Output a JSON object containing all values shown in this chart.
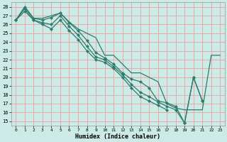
{
  "xlabel": "Humidex (Indice chaleur)",
  "bg_color": "#cceae6",
  "grid_color": "#e8a8a8",
  "line_color": "#2d7d6e",
  "xlim": [
    -0.5,
    23.5
  ],
  "ylim": [
    14.5,
    28.5
  ],
  "xticks": [
    0,
    1,
    2,
    3,
    4,
    5,
    6,
    7,
    8,
    9,
    10,
    11,
    12,
    13,
    14,
    15,
    16,
    17,
    18,
    19,
    20,
    21,
    22,
    23
  ],
  "yticks": [
    15,
    16,
    17,
    18,
    19,
    20,
    21,
    22,
    23,
    24,
    25,
    26,
    27,
    28
  ],
  "line_top": {
    "x": [
      0,
      1,
      2,
      3,
      4,
      5,
      6,
      7,
      8,
      9,
      10,
      11,
      12,
      13,
      14,
      15,
      16,
      17,
      18,
      19,
      20,
      21,
      22,
      23
    ],
    "y": [
      26.5,
      28.0,
      26.7,
      26.7,
      27.0,
      27.3,
      26.3,
      25.5,
      25.0,
      24.5,
      22.5,
      22.5,
      21.5,
      20.5,
      20.5,
      20.0,
      19.5,
      17.0,
      16.5,
      16.3,
      16.3,
      16.3,
      22.5,
      22.5
    ]
  },
  "line_a": {
    "x": [
      0,
      1,
      2,
      3,
      4,
      5,
      6,
      7,
      8,
      9,
      10,
      11,
      12,
      13,
      14,
      15,
      16,
      17,
      18,
      19,
      20,
      21
    ],
    "y": [
      26.5,
      28.0,
      26.7,
      26.5,
      26.8,
      27.3,
      26.2,
      25.3,
      24.2,
      22.8,
      22.2,
      21.5,
      20.5,
      19.8,
      19.5,
      18.8,
      17.3,
      17.1,
      16.7,
      14.8,
      20.0,
      17.3
    ]
  },
  "line_b": {
    "x": [
      0,
      1,
      2,
      3,
      4,
      5,
      6,
      7,
      8,
      9,
      10,
      11,
      12,
      13,
      14,
      15,
      16,
      17,
      18,
      19,
      20,
      21
    ],
    "y": [
      26.5,
      27.8,
      26.5,
      26.2,
      26.0,
      27.0,
      25.8,
      24.8,
      23.5,
      22.3,
      22.0,
      21.2,
      20.3,
      19.2,
      18.3,
      17.8,
      17.2,
      16.7,
      16.3,
      14.8,
      20.0,
      17.3
    ]
  },
  "line_c": {
    "x": [
      0,
      1,
      2,
      3,
      4,
      5,
      6,
      7,
      8,
      9,
      10,
      11,
      12,
      13,
      14,
      15,
      16,
      17
    ],
    "y": [
      26.5,
      27.5,
      26.5,
      26.0,
      25.5,
      26.5,
      25.3,
      24.3,
      23.0,
      22.0,
      21.7,
      21.0,
      20.0,
      18.8,
      17.8,
      17.3,
      16.8,
      16.3
    ]
  }
}
